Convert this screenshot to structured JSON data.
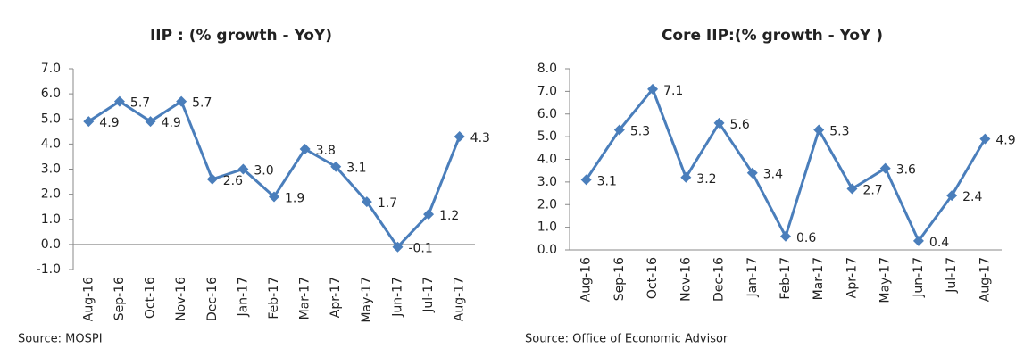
{
  "chart_data": [
    {
      "type": "line",
      "title": "IIP : (% growth - YoY)",
      "source": "Source: MOSPI",
      "categories": [
        "Aug-16",
        "Sep-16",
        "Oct-16",
        "Nov-16",
        "Dec-16",
        "Jan-17",
        "Feb-17",
        "Mar-17",
        "Apr-17",
        "May-17",
        "Jun-17",
        "Jul-17",
        "Aug-17"
      ],
      "series": [
        {
          "name": "IIP",
          "color": "#4a7ebb",
          "values": [
            4.9,
            5.7,
            4.9,
            5.7,
            2.6,
            3.0,
            1.9,
            3.8,
            3.1,
            1.7,
            -0.1,
            1.2,
            4.3
          ],
          "value_labels": [
            "4.9",
            "5.7",
            "4.9",
            "5.7",
            "2.6",
            "3.0",
            "1.9",
            "3.8",
            "3.1",
            "1.7",
            "-0.1",
            "1.2",
            "4.3"
          ]
        }
      ],
      "ylim": [
        -1,
        7
      ],
      "yticks": [
        {
          "value": -1,
          "label": "-1.0"
        },
        {
          "value": 0,
          "label": "0.0"
        },
        {
          "value": 1,
          "label": "1.0"
        },
        {
          "value": 2,
          "label": "2.0"
        },
        {
          "value": 3,
          "label": "3.0"
        },
        {
          "value": 4,
          "label": "4.0"
        },
        {
          "value": 5,
          "label": "5.0"
        },
        {
          "value": 6,
          "label": "6.0"
        },
        {
          "value": 7,
          "label": "7.0"
        }
      ]
    },
    {
      "type": "line",
      "title": "Core IIP:(% growth - YoY )",
      "source": "Source: Office of Economic Advisor",
      "categories": [
        "Aug-16",
        "Sep-16",
        "Oct-16",
        "Nov-16",
        "Dec-16",
        "Jan-17",
        "Feb-17",
        "Mar-17",
        "Apr-17",
        "May-17",
        "Jun-17",
        "Jul-17",
        "Aug-17"
      ],
      "series": [
        {
          "name": "Core IIP",
          "color": "#4a7ebb",
          "values": [
            3.1,
            5.3,
            7.1,
            3.2,
            5.6,
            3.4,
            0.6,
            5.3,
            2.7,
            3.6,
            0.4,
            2.4,
            4.9
          ]
        }
      ],
      "ylim": [
        0,
        8
      ],
      "yticks": [
        {
          "value": 0,
          "label": "0.0"
        },
        {
          "value": 1,
          "label": "1.0"
        },
        {
          "value": 2,
          "label": "2.0"
        },
        {
          "value": 3,
          "label": "3.0"
        },
        {
          "value": 4,
          "label": "4.0"
        },
        {
          "value": 5,
          "label": "5.0"
        },
        {
          "value": 6,
          "label": "6.0"
        },
        {
          "value": 7,
          "label": "7.0"
        },
        {
          "value": 8,
          "label": "8.0"
        }
      ]
    }
  ]
}
